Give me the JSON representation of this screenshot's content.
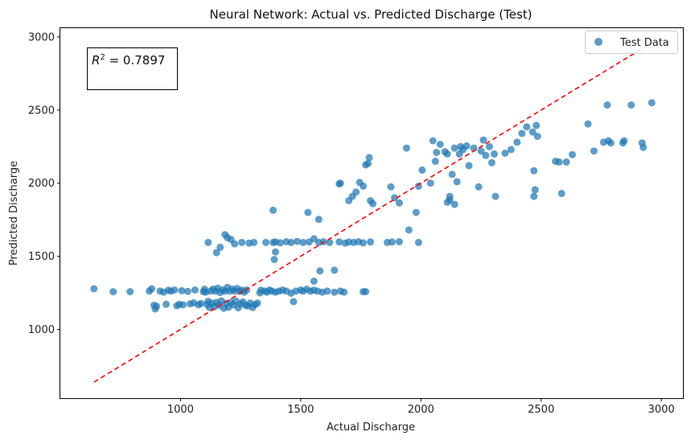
{
  "chart_data": {
    "type": "scatter",
    "title": "Neural Network: Actual vs. Predicted Discharge (Test)",
    "xlabel": "Actual Discharge",
    "ylabel": "Predicted Discharge",
    "xlim": [
      500,
      3090
    ],
    "ylim": [
      530,
      3060
    ],
    "xticks": [
      1000,
      1500,
      2000,
      2500,
      3000
    ],
    "yticks": [
      1000,
      1500,
      2000,
      2500,
      3000
    ],
    "xtick_labels": [
      "1000",
      "1500",
      "2000",
      "2500",
      "3000"
    ],
    "ytick_labels": [
      "1000",
      "1500",
      "2000",
      "2500",
      "3000"
    ],
    "grid": false,
    "legend": {
      "position": "upper right",
      "entries": [
        "Test Data"
      ]
    },
    "annotation": {
      "r2_label": "R",
      "r2_exp": "2",
      "r2_rest": " = 0.7897"
    },
    "colors": {
      "points": "#1f77b4",
      "reference_line": "#ff0000"
    },
    "reference_line": {
      "x": [
        640,
        2960
      ],
      "y": [
        640,
        2960
      ],
      "style": "dashed"
    },
    "series": [
      {
        "name": "Test Data",
        "points": [
          [
            640,
            1278
          ],
          [
            720,
            1258
          ],
          [
            790,
            1258
          ],
          [
            870,
            1262
          ],
          [
            880,
            1278
          ],
          [
            890,
            1165
          ],
          [
            895,
            1140
          ],
          [
            900,
            1158
          ],
          [
            915,
            1262
          ],
          [
            930,
            1255
          ],
          [
            940,
            1172
          ],
          [
            950,
            1268
          ],
          [
            960,
            1262
          ],
          [
            975,
            1270
          ],
          [
            985,
            1162
          ],
          [
            995,
            1172
          ],
          [
            1005,
            1265
          ],
          [
            1010,
            1168
          ],
          [
            1030,
            1260
          ],
          [
            1040,
            1175
          ],
          [
            1055,
            1182
          ],
          [
            1060,
            1270
          ],
          [
            1075,
            1168
          ],
          [
            1085,
            1178
          ],
          [
            1095,
            1258
          ],
          [
            1100,
            1275
          ],
          [
            1105,
            1255
          ],
          [
            1110,
            1172
          ],
          [
            1115,
            1192
          ],
          [
            1120,
            1150
          ],
          [
            1125,
            1262
          ],
          [
            1130,
            1180
          ],
          [
            1135,
            1275
          ],
          [
            1140,
            1155
          ],
          [
            1145,
            1262
          ],
          [
            1150,
            1185
          ],
          [
            1155,
            1282
          ],
          [
            1160,
            1165
          ],
          [
            1165,
            1252
          ],
          [
            1170,
            1195
          ],
          [
            1175,
            1270
          ],
          [
            1180,
            1145
          ],
          [
            1185,
            1262
          ],
          [
            1190,
            1178
          ],
          [
            1195,
            1288
          ],
          [
            1200,
            1152
          ],
          [
            1205,
            1262
          ],
          [
            1210,
            1185
          ],
          [
            1215,
            1275
          ],
          [
            1220,
            1168
          ],
          [
            1225,
            1262
          ],
          [
            1230,
            1195
          ],
          [
            1235,
            1280
          ],
          [
            1240,
            1148
          ],
          [
            1245,
            1262
          ],
          [
            1250,
            1175
          ],
          [
            1255,
            1268
          ],
          [
            1260,
            1188
          ],
          [
            1265,
            1255
          ],
          [
            1270,
            1165
          ],
          [
            1275,
            1270
          ],
          [
            1280,
            1160
          ],
          [
            1290,
            1180
          ],
          [
            1300,
            1150
          ],
          [
            1310,
            1170
          ],
          [
            1320,
            1180
          ],
          [
            1330,
            1250
          ],
          [
            1335,
            1268
          ],
          [
            1350,
            1262
          ],
          [
            1360,
            1255
          ],
          [
            1370,
            1270
          ],
          [
            1380,
            1262
          ],
          [
            1395,
            1255
          ],
          [
            1410,
            1262
          ],
          [
            1425,
            1270
          ],
          [
            1440,
            1262
          ],
          [
            1460,
            1248
          ],
          [
            1470,
            1190
          ],
          [
            1480,
            1262
          ],
          [
            1500,
            1270
          ],
          [
            1510,
            1262
          ],
          [
            1525,
            1275
          ],
          [
            1540,
            1262
          ],
          [
            1555,
            1268
          ],
          [
            1570,
            1262
          ],
          [
            1590,
            1255
          ],
          [
            1610,
            1262
          ],
          [
            1640,
            1255
          ],
          [
            1665,
            1262
          ],
          [
            1680,
            1255
          ],
          [
            1760,
            1258
          ],
          [
            1770,
            1258
          ],
          [
            1115,
            1595
          ],
          [
            1150,
            1525
          ],
          [
            1165,
            1562
          ],
          [
            1185,
            1648
          ],
          [
            1195,
            1628
          ],
          [
            1210,
            1615
          ],
          [
            1225,
            1585
          ],
          [
            1255,
            1595
          ],
          [
            1285,
            1590
          ],
          [
            1305,
            1595
          ],
          [
            1355,
            1595
          ],
          [
            1385,
            1595
          ],
          [
            1395,
            1598
          ],
          [
            1415,
            1592
          ],
          [
            1440,
            1600
          ],
          [
            1460,
            1595
          ],
          [
            1485,
            1602
          ],
          [
            1510,
            1595
          ],
          [
            1535,
            1598
          ],
          [
            1555,
            1620
          ],
          [
            1575,
            1595
          ],
          [
            1595,
            1600
          ],
          [
            1620,
            1595
          ],
          [
            1660,
            1598
          ],
          [
            1685,
            1590
          ],
          [
            1700,
            1598
          ],
          [
            1720,
            1595
          ],
          [
            1740,
            1600
          ],
          [
            1760,
            1592
          ],
          [
            1790,
            1598
          ],
          [
            1860,
            1595
          ],
          [
            1880,
            1598
          ],
          [
            1910,
            1600
          ],
          [
            1990,
            1595
          ],
          [
            1385,
            1815
          ],
          [
            1395,
            1530
          ],
          [
            1390,
            1478
          ],
          [
            1530,
            1800
          ],
          [
            1555,
            1330
          ],
          [
            1575,
            1752
          ],
          [
            1580,
            1400
          ],
          [
            1640,
            1405
          ],
          [
            1660,
            1995
          ],
          [
            1665,
            2000
          ],
          [
            1700,
            1880
          ],
          [
            1715,
            1910
          ],
          [
            1730,
            1940
          ],
          [
            1745,
            2005
          ],
          [
            1760,
            1980
          ],
          [
            1770,
            2125
          ],
          [
            1780,
            2135
          ],
          [
            1785,
            2175
          ],
          [
            1790,
            1880
          ],
          [
            1800,
            1860
          ],
          [
            1875,
            1975
          ],
          [
            1890,
            1900
          ],
          [
            1910,
            1865
          ],
          [
            1940,
            2240
          ],
          [
            1950,
            1680
          ],
          [
            1980,
            1800
          ],
          [
            1990,
            1980
          ],
          [
            2005,
            2090
          ],
          [
            2040,
            2000
          ],
          [
            2050,
            2290
          ],
          [
            2060,
            2150
          ],
          [
            2065,
            2210
          ],
          [
            2080,
            2265
          ],
          [
            2100,
            2215
          ],
          [
            2110,
            2200
          ],
          [
            2120,
            1885
          ],
          [
            2130,
            2060
          ],
          [
            2140,
            2240
          ],
          [
            2150,
            2010
          ],
          [
            2160,
            2200
          ],
          [
            2165,
            2250
          ],
          [
            2175,
            2230
          ],
          [
            2190,
            2255
          ],
          [
            2200,
            2120
          ],
          [
            2220,
            2240
          ],
          [
            2240,
            1975
          ],
          [
            2250,
            2220
          ],
          [
            2260,
            2295
          ],
          [
            2270,
            2190
          ],
          [
            2285,
            2250
          ],
          [
            2295,
            2140
          ],
          [
            2305,
            2200
          ],
          [
            2310,
            1910
          ],
          [
            2350,
            2205
          ],
          [
            2375,
            2230
          ],
          [
            2400,
            2280
          ],
          [
            2420,
            2340
          ],
          [
            2440,
            2385
          ],
          [
            2465,
            2350
          ],
          [
            2480,
            2395
          ],
          [
            2485,
            2320
          ],
          [
            2470,
            2085
          ],
          [
            2475,
            1955
          ],
          [
            2470,
            1910
          ],
          [
            2560,
            2150
          ],
          [
            2575,
            2145
          ],
          [
            2585,
            1930
          ],
          [
            2605,
            2145
          ],
          [
            2630,
            2195
          ],
          [
            2695,
            2405
          ],
          [
            2720,
            2220
          ],
          [
            2760,
            2280
          ],
          [
            2780,
            2290
          ],
          [
            2790,
            2275
          ],
          [
            2775,
            2535
          ],
          [
            2875,
            2535
          ],
          [
            2845,
            2290
          ],
          [
            2840,
            2275
          ],
          [
            2920,
            2275
          ],
          [
            2925,
            2245
          ],
          [
            2960,
            2550
          ],
          [
            2110,
            1870
          ],
          [
            2140,
            1855
          ],
          [
            2120,
            1910
          ]
        ]
      }
    ]
  }
}
